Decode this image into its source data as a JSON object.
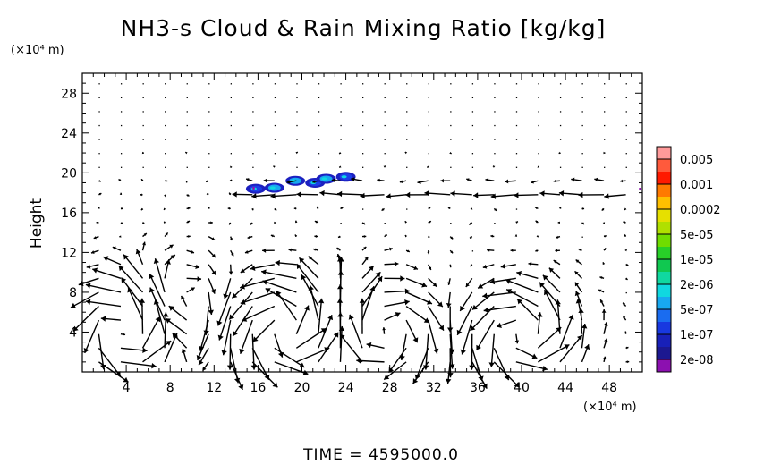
{
  "chart_data": {
    "type": "vector-field-contour",
    "title": "NH3-s Cloud & Rain Mixing Ratio [kg/kg]",
    "ylabel": "Height",
    "y_unit": "(×10⁴ m)",
    "x_unit": "(×10⁴ m)",
    "footer": "TIME = 4595000.0",
    "xlim": [
      0,
      51
    ],
    "ylim": [
      0,
      30
    ],
    "x_ticks": [
      4,
      8,
      12,
      16,
      20,
      24,
      28,
      32,
      36,
      40,
      44,
      48
    ],
    "y_ticks": [
      4,
      8,
      12,
      16,
      20,
      24,
      28
    ],
    "x_tick_labels": [
      "4",
      "8",
      "12",
      "16",
      "20",
      "24",
      "28",
      "32",
      "36",
      "40",
      "44",
      "48"
    ],
    "y_tick_labels": [
      "4",
      "8",
      "12",
      "16",
      "20",
      "24",
      "28"
    ],
    "colorbar": {
      "labels": [
        "0.005",
        "0.001",
        "0.0002",
        "5e-05",
        "1e-05",
        "2e-06",
        "5e-07",
        "1e-07",
        "2e-08"
      ],
      "colors": [
        "#ff9a9a",
        "#ff5a3c",
        "#ff1a00",
        "#ff7a00",
        "#ffc000",
        "#e6e000",
        "#b0e000",
        "#70dd00",
        "#28d028",
        "#10c850",
        "#10d8a0",
        "#10d8e0",
        "#18a8f0",
        "#1a6cf0",
        "#1838e0",
        "#1820b8",
        "#1c1890",
        "#8c10b0"
      ]
    },
    "cloud_patches": [
      {
        "x": 15.8,
        "y": 18.4,
        "level": "1e-07"
      },
      {
        "x": 17.5,
        "y": 18.5,
        "level": "5e-07"
      },
      {
        "x": 19.4,
        "y": 19.2,
        "level": "5e-07"
      },
      {
        "x": 21.2,
        "y": 19.0,
        "level": "1e-07"
      },
      {
        "x": 22.2,
        "y": 19.4,
        "level": "5e-07"
      },
      {
        "x": 24.0,
        "y": 19.6,
        "level": "1e-07"
      }
    ],
    "vortices": [
      {
        "x": 4.5,
        "y": 4.5,
        "strength": 1.0,
        "sign": 1
      },
      {
        "x": 18.5,
        "y": 4.2,
        "strength": 1.0,
        "sign": 1
      },
      {
        "x": 27.5,
        "y": 4.0,
        "strength": 0.6,
        "sign": -1
      },
      {
        "x": 40.0,
        "y": 3.8,
        "strength": 0.7,
        "sign": 1
      },
      {
        "x": 8.0,
        "y": 6.0,
        "strength": 0.6,
        "sign": -1
      }
    ],
    "upper_jet": {
      "y": 18.0,
      "x_start": 20,
      "x_end": 51,
      "u": -1.0
    }
  }
}
